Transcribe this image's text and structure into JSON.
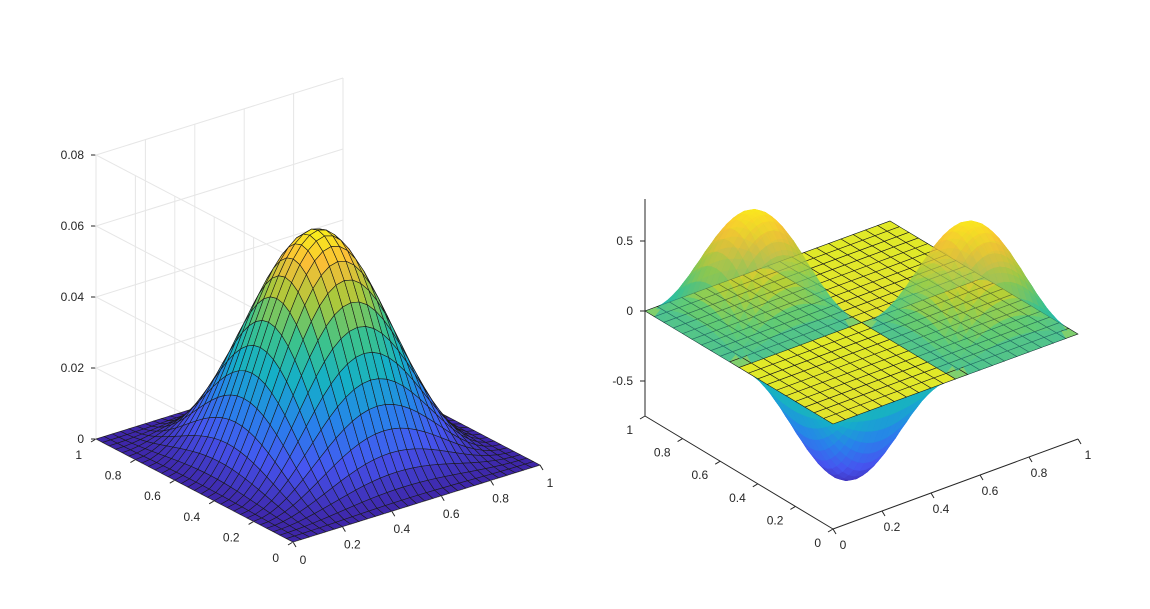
{
  "chart_data": [
    {
      "type": "surface",
      "title": "",
      "xlabel": "",
      "ylabel": "",
      "zlabel": "",
      "x_range": [
        0,
        1
      ],
      "y_range": [
        0,
        1
      ],
      "z_range": [
        0,
        0.08
      ],
      "x_ticks": [
        "0",
        "0.2",
        "0.4",
        "0.6",
        "0.8",
        "1"
      ],
      "y_ticks": [
        "0",
        "0.2",
        "0.4",
        "0.6",
        "0.8",
        "1"
      ],
      "z_ticks": [
        "0",
        "0.02",
        "0.04",
        "0.06",
        "0.08"
      ],
      "function_peak_z": 0.0625,
      "peak_location": [
        0.5,
        0.5
      ],
      "grid_resolution": 30,
      "colormap": "parula",
      "grid": true
    },
    {
      "type": "surface",
      "title": "",
      "xlabel": "",
      "ylabel": "",
      "zlabel": "",
      "x_range": [
        0,
        1
      ],
      "y_range": [
        0,
        1
      ],
      "z_range": [
        -0.8,
        0.8
      ],
      "x_ticks": [
        "0",
        "0.2",
        "0.4",
        "0.6",
        "0.8",
        "1"
      ],
      "y_ticks": [
        "0",
        "0.2",
        "0.4",
        "0.6",
        "0.8",
        "1"
      ],
      "z_ticks": [
        "-0.5",
        "0",
        "0.5"
      ],
      "surface_peak_z": 0.75,
      "surface_min_z": -0.75,
      "plane_z": 0,
      "plane_color": "#f2ee1b",
      "colormap": "parula",
      "grid": false
    }
  ]
}
